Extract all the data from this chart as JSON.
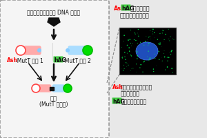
{
  "bg_color": "#e8e8e8",
  "left_box_facecolor": "#f5f5f5",
  "left_box_edgecolor": "#888888",
  "title_text": "酸化グアニンを持つ DNA の原料",
  "ash_color": "#ff0000",
  "hag_color": "#009900",
  "hag_bg_color": "#44cc44",
  "arrow_color": "#111111",
  "pink_color": "#ffaaaa",
  "cyan_color": "#aaddff",
  "green_circle_color": "#00dd00",
  "red_circle_edge": "#ff4444",
  "label_combine": "結合",
  "label_combine2": "(MutT 再構筌)",
  "right_title_line1_ash": "Ash-",
  "right_title_line1_hag": "hAG",
  "right_title_line1_rest": "の結合により",
  "right_title_line2": "蛍光の点として観察",
  "legend_ash_label": "Ash",
  "legend_ash_text": "：蛍光の点を作る足場",
  "legend_ash_text2": "となる蛋白質",
  "legend_hag_label": "hAG",
  "legend_hag_text": "：綠色蛍光蛋白質"
}
